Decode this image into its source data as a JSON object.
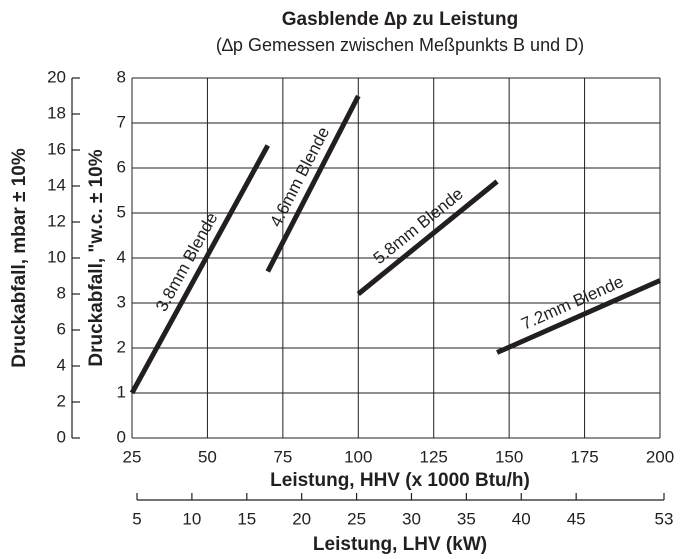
{
  "chart_data": {
    "type": "line",
    "title": "Gasblende ∆p zu Leistung",
    "subtitle": "(∆p Gemessen zwischen Meßpunkts B und D)",
    "x_label": "Leistung, HHV (x 1000 Btu/h)",
    "x2_label": "Leistung, LHV (kW)",
    "y_label": "Druckabfall, \"w.c. ± 10%",
    "y2_label": "Druckabfall, mbar ± 10%",
    "xlim": [
      25,
      200
    ],
    "xticks": [
      25,
      50,
      75,
      100,
      125,
      150,
      175,
      200
    ],
    "x2lim": [
      5,
      53
    ],
    "x2ticks": [
      5,
      10,
      15,
      20,
      25,
      30,
      35,
      40,
      45,
      53
    ],
    "ylim": [
      0,
      8
    ],
    "yticks": [
      0,
      1,
      2,
      3,
      4,
      5,
      6,
      7,
      8
    ],
    "y2lim": [
      0,
      20
    ],
    "y2ticks": [
      0,
      2,
      4,
      6,
      8,
      10,
      12,
      14,
      16,
      18,
      20
    ],
    "grid": true,
    "series": [
      {
        "name": "3.8mm Blende",
        "color": "#231f20",
        "x": [
          25,
          70
        ],
        "values": [
          1,
          6.5
        ]
      },
      {
        "name": "4.6mm Blende",
        "color": "#231f20",
        "x": [
          70,
          100
        ],
        "values": [
          3.7,
          7.6
        ]
      },
      {
        "name": "5.8mm Blende",
        "color": "#231f20",
        "x": [
          100,
          146
        ],
        "values": [
          3.2,
          5.7
        ]
      },
      {
        "name": "7.2mm Blende",
        "color": "#231f20",
        "x": [
          146,
          200
        ],
        "values": [
          1.9,
          3.5
        ]
      }
    ]
  }
}
